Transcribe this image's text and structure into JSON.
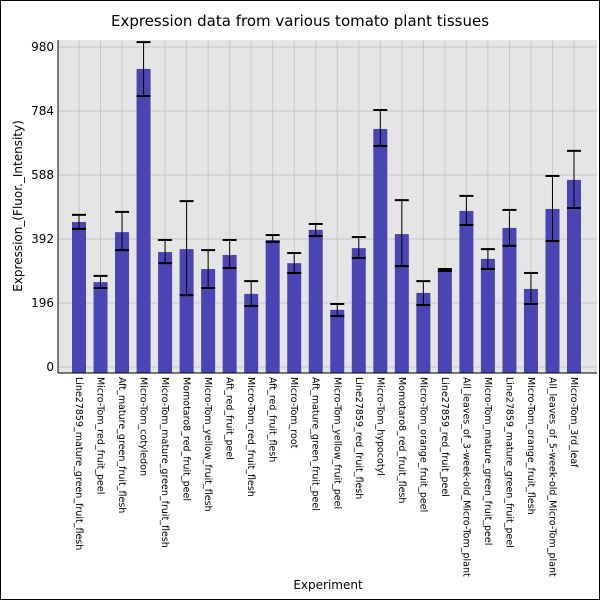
{
  "chart_data": {
    "type": "bar",
    "title": "Expression data from various tomato plant tissues",
    "xlabel": "Experiment",
    "ylabel": "Expression_(Fluor._Intensity)",
    "ylim": [
      0,
      980
    ],
    "yticks": [
      "0",
      "196",
      "392",
      "588",
      "784",
      "980"
    ],
    "grid": true,
    "bar_color": "#4b45b3",
    "background_color": "#e5e5e5",
    "categories": [
      "Line27859_mature_green_fruit_flesh",
      "Micro-Tom_red_fruit_peel",
      "Aft_mature_green_fruit_flesh",
      "Micro-Tom_cotyledon",
      "Micro-Tom_mature_green_fruit_flesh",
      "Momotaro8_red_fruit_peel",
      "Micro-Tom_yellow_fruit_flesh",
      "Aft_red_fruit_peel",
      "Micro-Tom_red_fruit_flesh",
      "Aft_red_fruit_flesh",
      "Micro-Tom_root",
      "Aft_mature_green_fruit_peel",
      "Micro-Tom_yellow_fruit_peel",
      "Line27859_red_fruit_flesh",
      "Micro-Tom_hypocotyl",
      "Momotaro8_red_fruit_flesh",
      "Micro-Tom_orange_fruit_peel",
      "Line27859_red_fruit_peel",
      "All_leaves_of_3-week-old_Micro-Tom_plant",
      "Micro-Tom_mature_green_fruit_peel",
      "Line27859_mature_green_fruit_peel",
      "Micro-Tom_orange_fruit_flesh",
      "All_leaves_of_5-week-old_Micro-Tom_plant",
      "Micro-Tom_3rd_leaf"
    ],
    "values": [
      444,
      260,
      413,
      913,
      352,
      361,
      300,
      343,
      224,
      389,
      318,
      420,
      175,
      364,
      729,
      407,
      227,
      297,
      478,
      331,
      426,
      239,
      484,
      573
    ],
    "error_low": [
      423,
      242,
      358,
      830,
      318,
      220,
      242,
      303,
      187,
      383,
      288,
      401,
      156,
      334,
      677,
      309,
      190,
      294,
      435,
      300,
      371,
      193,
      386,
      487
    ],
    "error_high": [
      466,
      279,
      475,
      995,
      389,
      508,
      358,
      389,
      263,
      404,
      349,
      438,
      193,
      398,
      787,
      511,
      263,
      300,
      524,
      361,
      481,
      288,
      585,
      662
    ]
  }
}
